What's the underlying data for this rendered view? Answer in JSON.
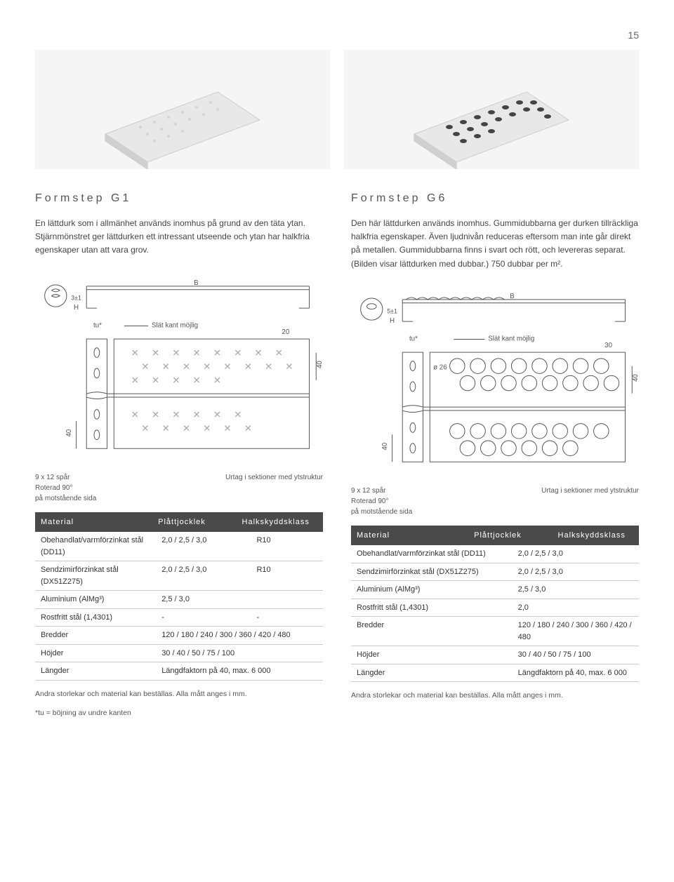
{
  "page_number": "15",
  "left": {
    "title": "Formstep G1",
    "description": "En lättdurk som i allmänhet används inomhus på grund av den täta ytan. Stjärnmönstret ger lättdurken ett intressant utseende och ytan har halkfria egenskaper utan att vara grov.",
    "diagram": {
      "tu_label": "tu*",
      "edge_label": "Slät kant möjlig",
      "dim_top": "20",
      "dim_right": "40",
      "dim_left": "40",
      "B": "B",
      "H": "H",
      "top_h": "3±1"
    },
    "caption_l1": "9 x 12 spår",
    "caption_l2": "Roterad 90°",
    "caption_l3": "på motstående sida",
    "caption_r": "Urtag i sektioner med ytstruktur",
    "table_headers": {
      "c1": "Material",
      "c2": "Plåttjocklek",
      "c3": "Halkskyddsklass"
    },
    "table_rows": [
      [
        "Obehandlat/varmförzinkat stål (DD11)",
        "2,0 / 2,5 / 3,0",
        "R10"
      ],
      [
        "Sendzimirförzinkat stål (DX51Z275)",
        "2,0 / 2,5 / 3,0",
        "R10"
      ],
      [
        "Aluminium (AlMg³)",
        "2,5 / 3,0",
        ""
      ],
      [
        "Rostfritt stål (1,4301)",
        "-",
        "-"
      ],
      [
        "Bredder",
        "120 / 180 / 240 / 300 / 360 / 420 / 480",
        ""
      ],
      [
        "Höjder",
        "30 / 40 / 50 / 75 / 100",
        ""
      ],
      [
        "Längder",
        "Längdfaktorn på 40, max. 6 000",
        ""
      ]
    ],
    "note1": "Andra storlekar och material kan beställas. Alla mått anges i mm.",
    "note2": "*tu = böjning av undre kanten"
  },
  "right": {
    "title": "Formstep G6",
    "description": "Den här lättdurken används inomhus. Gummidubbarna ger durken tillräckliga halkfria egenskaper. Även ljudnivån reduceras eftersom man inte går direkt på metallen. Gummi­dubbarna finns i svart och rött, och levereras separat. (Bilden visar lättdurken med dubbar.) 750 dubbar per m².",
    "diagram": {
      "tu_label": "tu*",
      "edge_label": "Slät kant möjlig",
      "dim_top": "30",
      "dim_right": "40",
      "dim_left": "40",
      "diam": "ø 26",
      "B": "B",
      "H": "H",
      "top_h": "5±1"
    },
    "caption_l1": "9 x 12 spår",
    "caption_l2": "Roterad 90°",
    "caption_l3": "på motstående sida",
    "caption_r": "Urtag i sektioner med ytstruktur",
    "table_headers": {
      "c1": "Material",
      "c2": "Plåttjocklek",
      "c3": "Halkskyddsklass"
    },
    "table_rows": [
      [
        "Obehandlat/varmförzinkat stål (DD11)",
        "2,0 / 2,5 / 3,0",
        ""
      ],
      [
        "Sendzimirförzinkat stål (DX51Z275)",
        "2,0 / 2,5 / 3,0",
        ""
      ],
      [
        "Aluminium (AlMg³)",
        "2,5 / 3,0",
        ""
      ],
      [
        "Rostfritt stål (1,4301)",
        "2,0",
        ""
      ],
      [
        "Bredder",
        "120 / 180 / 240 / 300 / 360 / 420 / 480",
        ""
      ],
      [
        "Höjder",
        "30 / 40 / 50 / 75 / 100",
        ""
      ],
      [
        "Längder",
        "Längdfaktorn på 40, max. 6 000",
        ""
      ]
    ],
    "note1": "Andra storlekar och material kan beställas. Alla mått anges i mm."
  },
  "colors": {
    "header_bg": "#4a4a4a",
    "border": "#cccccc",
    "text": "#333333",
    "svg_stroke": "#555555"
  }
}
